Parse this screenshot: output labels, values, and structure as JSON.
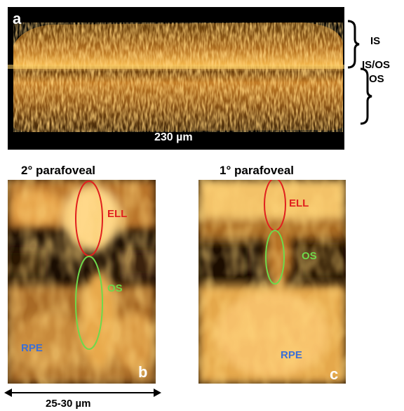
{
  "panel_a": {
    "label": "a",
    "scale_bar": "230 µm",
    "layers": {
      "is": "IS",
      "isos": "IS/OS",
      "os": "OS"
    }
  },
  "panel_b": {
    "title": "2° parafoveal",
    "label": "b",
    "annotations": {
      "ell": "ELL",
      "os": "OS",
      "rpe": "RPE"
    },
    "scale": "25-30 µm"
  },
  "panel_c": {
    "title": "1° parafoveal",
    "label": "c",
    "annotations": {
      "ell": "ELL",
      "os": "OS",
      "rpe": "RPE"
    }
  },
  "colors": {
    "background": "#000000",
    "tissue": "#e9a335",
    "ell_outline": "#e0201e",
    "os_outline": "#6fd84b",
    "rpe_text": "#3b6fd6"
  }
}
